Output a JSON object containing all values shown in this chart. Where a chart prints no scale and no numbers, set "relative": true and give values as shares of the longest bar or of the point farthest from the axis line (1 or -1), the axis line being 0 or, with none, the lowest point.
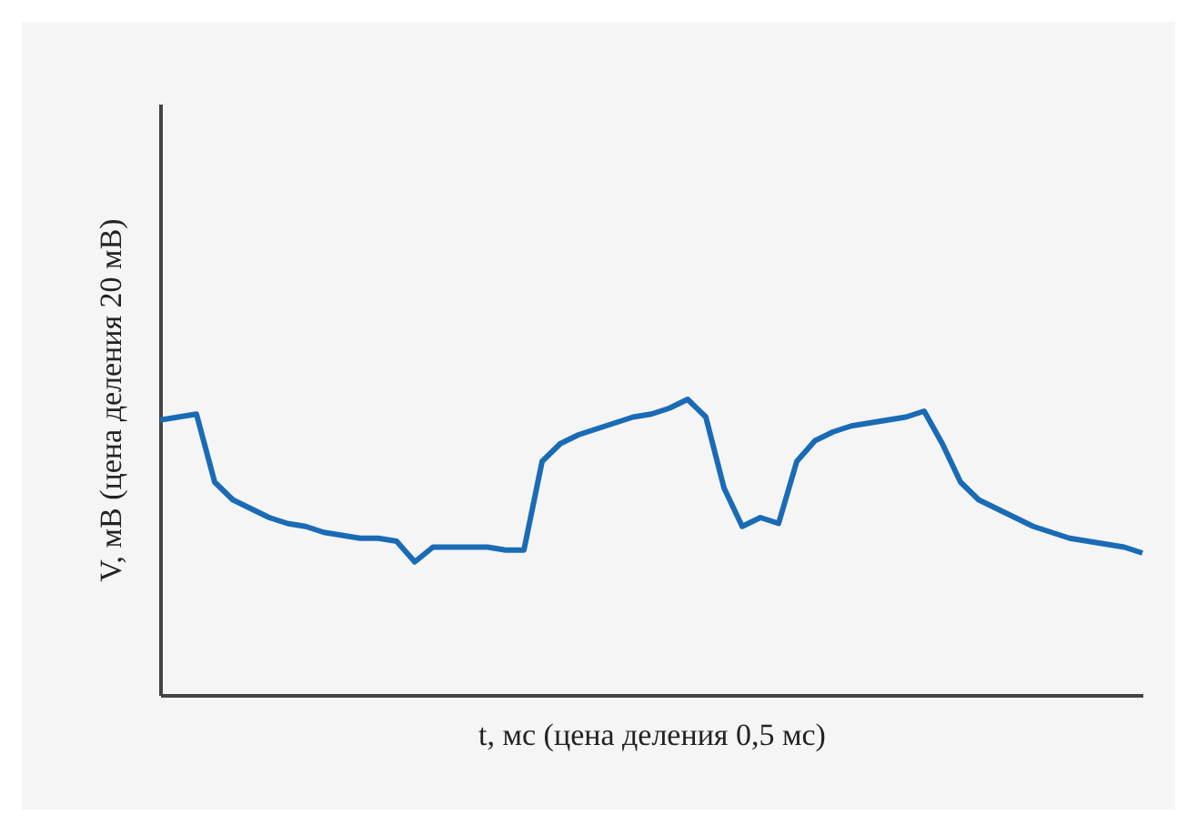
{
  "chart_data": {
    "type": "line",
    "relative": true,
    "xlabel": "t, мс (цена деления 0,5 мс)",
    "ylabel": "V, мВ (цена деления 20 мВ)",
    "grid": false,
    "legend": false,
    "categories": [
      null,
      null,
      null,
      null,
      null,
      null,
      null,
      null,
      null,
      null,
      null,
      null,
      null,
      null,
      null,
      null,
      null,
      null,
      null,
      null,
      null,
      null,
      null,
      null,
      null,
      null,
      null,
      null,
      null,
      null,
      null,
      null,
      null,
      null,
      null,
      null,
      null,
      null,
      null,
      null,
      null,
      null,
      null,
      null,
      null,
      null,
      null,
      null,
      null,
      null,
      null,
      null,
      null,
      null,
      null
    ],
    "series": [
      {
        "color": "#1a6bb5",
        "values": [
          0.93,
          0.94,
          0.95,
          0.72,
          0.66,
          0.63,
          0.6,
          0.58,
          0.57,
          0.55,
          0.54,
          0.53,
          0.53,
          0.52,
          0.45,
          0.5,
          0.5,
          0.5,
          0.5,
          0.49,
          0.49,
          0.79,
          0.85,
          0.88,
          0.9,
          0.92,
          0.94,
          0.95,
          0.97,
          1,
          0.94,
          0.7,
          0.57,
          0.6,
          0.58,
          0.79,
          0.86,
          0.89,
          0.91,
          0.92,
          0.93,
          0.94,
          0.96,
          0.85,
          0.72,
          0.66,
          0.63,
          0.6,
          0.57,
          0.55,
          0.53,
          0.52,
          0.51,
          0.5,
          0.48
        ]
      }
    ]
  }
}
